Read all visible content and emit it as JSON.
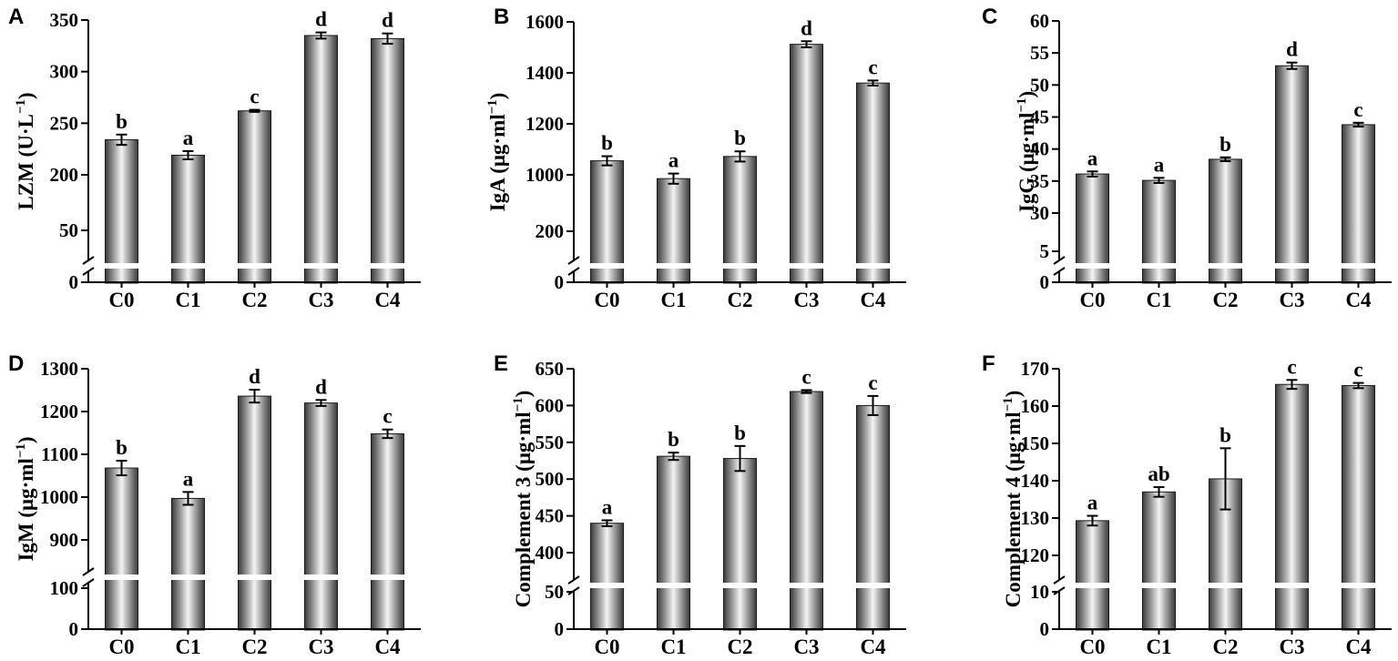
{
  "chart_data": [
    {
      "panel": "A",
      "type": "bar",
      "categories": [
        "C0",
        "C1",
        "C2",
        "C3",
        "C4"
      ],
      "values": [
        234,
        219,
        262,
        335,
        332
      ],
      "errors": [
        5,
        4,
        1,
        3,
        5
      ],
      "significance": [
        "b",
        "a",
        "c",
        "d",
        "d"
      ],
      "ylabel": "LZM (U·L",
      "ylabel_sup": "−1",
      "ylabel_close": ")",
      "lower_axis": {
        "ticks": [
          0,
          50
        ]
      },
      "upper_axis": {
        "ticks": [
          200,
          250,
          300,
          350
        ]
      },
      "axis_break": true
    },
    {
      "panel": "B",
      "type": "bar",
      "categories": [
        "C0",
        "C1",
        "C2",
        "C3",
        "C4"
      ],
      "values": [
        1055,
        985,
        1072,
        1512,
        1360
      ],
      "errors": [
        18,
        20,
        20,
        12,
        10
      ],
      "significance": [
        "b",
        "a",
        "b",
        "d",
        "c"
      ],
      "ylabel": "IgA (μg·ml",
      "ylabel_sup": "−1",
      "ylabel_close": ")",
      "lower_axis": {
        "ticks": [
          0,
          200
        ]
      },
      "upper_axis": {
        "ticks": [
          1000,
          1200,
          1400,
          1600
        ]
      },
      "axis_break": true
    },
    {
      "panel": "C",
      "type": "bar",
      "categories": [
        "C0",
        "C1",
        "C2",
        "C3",
        "C4"
      ],
      "values": [
        36.1,
        35.1,
        38.4,
        53.0,
        43.8
      ],
      "errors": [
        0.4,
        0.4,
        0.3,
        0.5,
        0.3
      ],
      "significance": [
        "a",
        "a",
        "b",
        "d",
        "c"
      ],
      "ylabel": "IgG (μg·ml",
      "ylabel_sup": "−1",
      "ylabel_close": ")",
      "lower_axis": {
        "ticks": [
          0,
          5
        ]
      },
      "upper_axis": {
        "ticks": [
          30,
          35,
          40,
          45,
          50,
          55,
          60
        ]
      },
      "axis_break": true
    },
    {
      "panel": "D",
      "type": "bar",
      "categories": [
        "C0",
        "C1",
        "C2",
        "C3",
        "C4"
      ],
      "values": [
        1068,
        997,
        1236,
        1220,
        1148
      ],
      "errors": [
        17,
        15,
        15,
        7,
        10
      ],
      "significance": [
        "b",
        "a",
        "d",
        "d",
        "c"
      ],
      "ylabel": "IgM (μg·ml",
      "ylabel_sup": "−1",
      "ylabel_close": ")",
      "lower_axis": {
        "ticks": [
          0,
          100
        ]
      },
      "upper_axis": {
        "ticks": [
          900,
          1000,
          1100,
          1200,
          1300
        ]
      },
      "axis_break": true
    },
    {
      "panel": "E",
      "type": "bar",
      "categories": [
        "C0",
        "C1",
        "C2",
        "C3",
        "C4"
      ],
      "values": [
        440,
        531,
        528,
        619,
        600
      ],
      "errors": [
        4,
        5,
        17,
        2,
        13
      ],
      "significance": [
        "a",
        "b",
        "b",
        "c",
        "c"
      ],
      "ylabel": "Complement 3 (μg·ml",
      "ylabel_sup": "−1",
      "ylabel_close": ")",
      "lower_axis": {
        "ticks": [
          0,
          50
        ]
      },
      "upper_axis": {
        "ticks": [
          400,
          450,
          500,
          550,
          600,
          650
        ]
      },
      "axis_break": true
    },
    {
      "panel": "F",
      "type": "bar",
      "categories": [
        "C0",
        "C1",
        "C2",
        "C3",
        "C4"
      ],
      "values": [
        129.3,
        137.0,
        140.5,
        165.8,
        165.5
      ],
      "errors": [
        1.3,
        1.3,
        8.2,
        1.2,
        0.7
      ],
      "significance": [
        "a",
        "ab",
        "b",
        "c",
        "c"
      ],
      "ylabel": "Complement 4 (μg·ml",
      "ylabel_sup": "−1",
      "ylabel_close": ")",
      "lower_axis": {
        "ticks": [
          0,
          10
        ]
      },
      "upper_axis": {
        "ticks": [
          120,
          130,
          140,
          150,
          160,
          170
        ]
      },
      "axis_break": true
    }
  ]
}
